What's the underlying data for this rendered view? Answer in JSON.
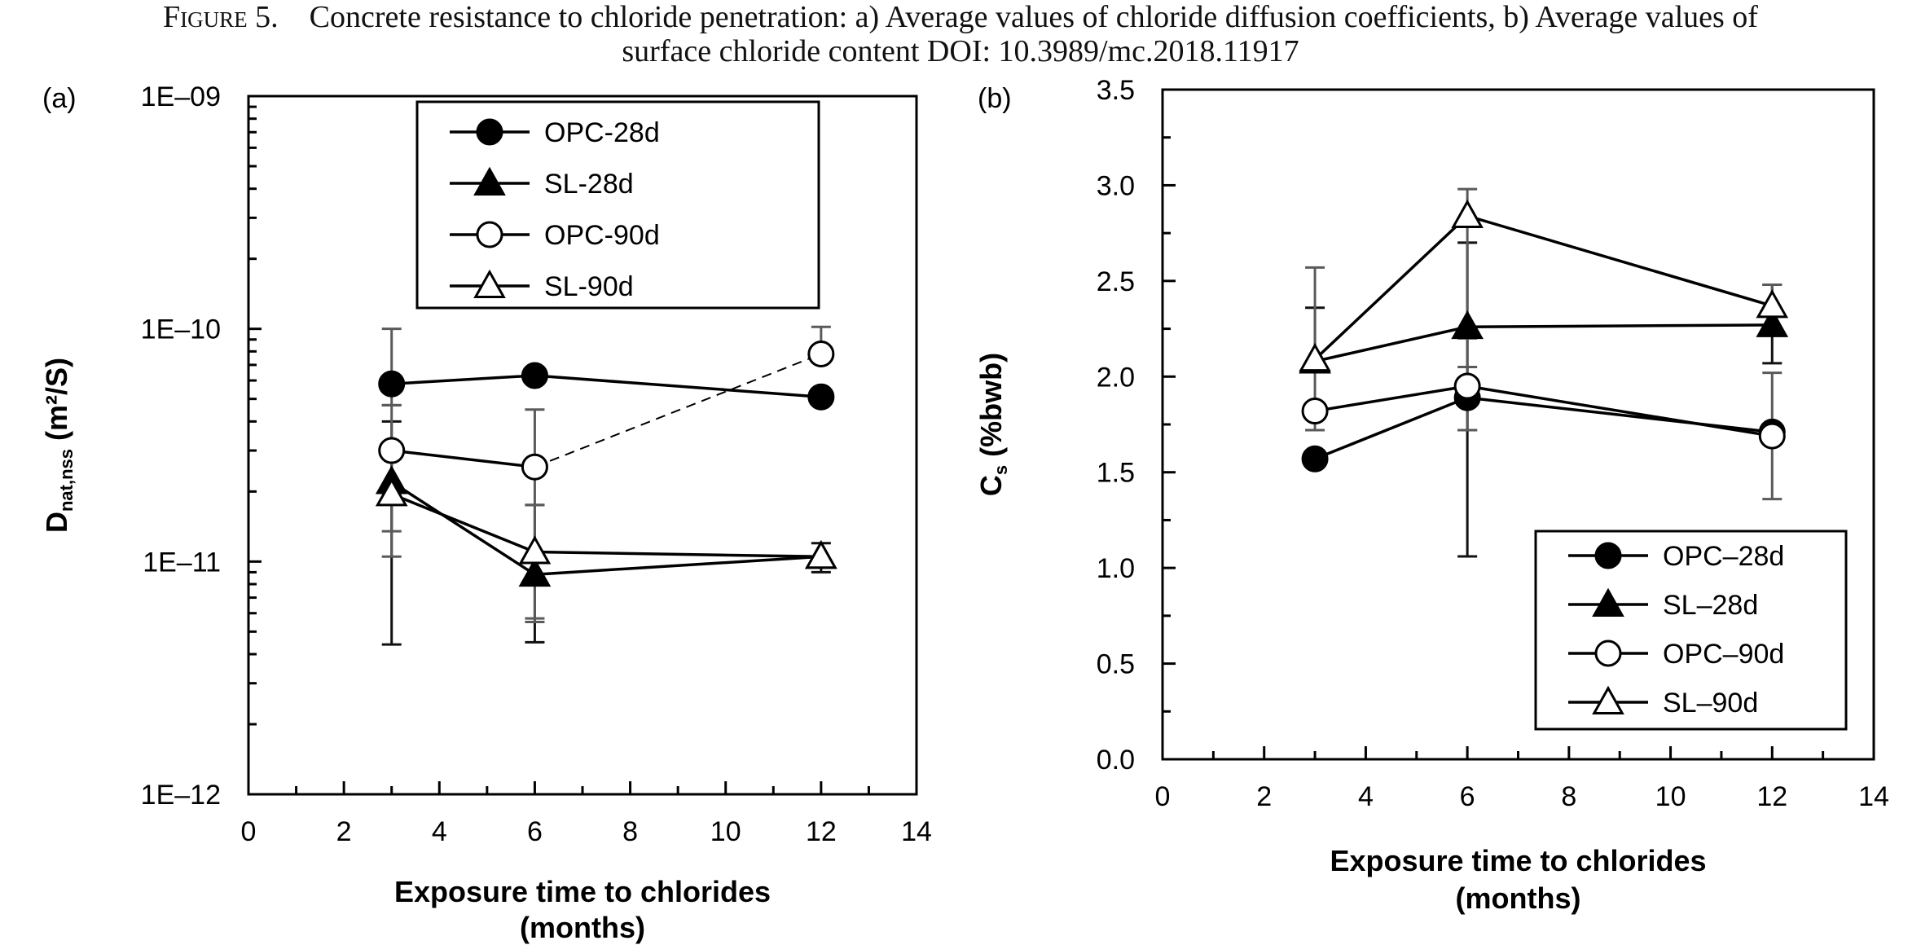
{
  "caption": {
    "figure_no": "Figure 5.",
    "line1": "Concrete resistance to chloride penetration: a) Average values of chloride diffusion coefficients, b) Average values of",
    "line2": "surface chloride content  DOI: 10.3989/mc.2018.11917"
  },
  "chart_data": [
    {
      "panel": "(a)",
      "type": "line",
      "yscale": "log",
      "xlabel": "Exposure time to  chlorides",
      "xlabel2": "(months)",
      "ylabel_main": "D",
      "ylabel_sub": "nat,nss",
      "ylabel_unit": "(m²/S)",
      "xlim": [
        0,
        14
      ],
      "ylim": [
        1e-12,
        1e-09
      ],
      "xticks": [
        0,
        2,
        4,
        6,
        8,
        10,
        12,
        14
      ],
      "xtick_labels": [
        "0",
        "2",
        "4",
        "6",
        "8",
        "10",
        "12",
        "14"
      ],
      "yticks": [
        1e-12,
        1e-11,
        1e-10,
        1e-09
      ],
      "ytick_labels": [
        "1E–12",
        "1E–11",
        "1E–10",
        "1E–09"
      ],
      "legend_position": "top-center",
      "series": [
        {
          "name": "OPC-28d",
          "marker": "circle",
          "filled": true,
          "x": [
            3,
            6,
            12
          ],
          "y": [
            5.8e-11,
            6.3e-11,
            5.1e-11
          ],
          "err_low": [
            4.7e-11,
            null,
            null
          ],
          "err_high": [
            1e-10,
            null,
            null
          ],
          "dashed_segments": []
        },
        {
          "name": "SL-28d",
          "marker": "triangle",
          "filled": true,
          "x": [
            3,
            6,
            12
          ],
          "y": [
            2.2e-11,
            8.8e-12,
            1.05e-11
          ],
          "err_low": [
            4.4e-12,
            4.5e-12,
            9e-12
          ],
          "err_high": [
            4e-11,
            1.75e-11,
            1.2e-11
          ],
          "dashed_segments": []
        },
        {
          "name": "OPC-90d",
          "marker": "circle",
          "filled": false,
          "x": [
            3,
            6,
            12
          ],
          "y": [
            3e-11,
            2.55e-11,
            7.8e-11
          ],
          "err_low": [
            1.35e-11,
            5.5e-12,
            null
          ],
          "err_high": [
            4.7e-11,
            4.5e-11,
            1.02e-10
          ],
          "dashed_segments": [
            1
          ]
        },
        {
          "name": "SL-90d",
          "marker": "triangle",
          "filled": false,
          "x": [
            3,
            6,
            12
          ],
          "y": [
            1.95e-11,
            1.1e-11,
            1.05e-11
          ],
          "err_low": [
            1.05e-11,
            5.7e-12,
            null
          ],
          "err_high": [
            2.9e-11,
            1.75e-11,
            null
          ],
          "dashed_segments": []
        }
      ]
    },
    {
      "panel": "(b)",
      "type": "line",
      "yscale": "linear",
      "xlabel": "Exposure time to chlorides",
      "xlabel2": "(months)",
      "ylabel_main": "C",
      "ylabel_sub": "s",
      "ylabel_unit": "(%bwb)",
      "xlim": [
        0,
        14
      ],
      "ylim": [
        0,
        3.5
      ],
      "xticks": [
        0,
        2,
        4,
        6,
        8,
        10,
        12,
        14
      ],
      "xtick_labels": [
        "0",
        "2",
        "4",
        "6",
        "8",
        "10",
        "12",
        "14"
      ],
      "yticks": [
        0,
        0.5,
        1.0,
        1.5,
        2.0,
        2.5,
        3.0,
        3.5
      ],
      "ytick_labels": [
        "0.0",
        "0.5",
        "1.0",
        "1.5",
        "2.0",
        "2.5",
        "3.0",
        "3.5"
      ],
      "legend_position": "bottom-right",
      "series": [
        {
          "name": "OPC–28d",
          "marker": "circle",
          "filled": true,
          "x": [
            3,
            6,
            12
          ],
          "y": [
            1.57,
            1.89,
            1.71
          ],
          "err_low": [
            null,
            1.72,
            null
          ],
          "err_high": [
            null,
            2.05,
            null
          ],
          "dashed_segments": []
        },
        {
          "name": "SL–28d",
          "marker": "triangle",
          "filled": true,
          "x": [
            3,
            6,
            12
          ],
          "y": [
            2.08,
            2.26,
            2.27
          ],
          "err_low": [
            null,
            1.06,
            2.07
          ],
          "err_high": [
            2.36,
            2.7,
            2.48
          ],
          "dashed_segments": []
        },
        {
          "name": "OPC–90d",
          "marker": "circle",
          "filled": false,
          "x": [
            3,
            6,
            12
          ],
          "y": [
            1.82,
            1.95,
            1.69
          ],
          "err_low": [
            null,
            1.72,
            1.36
          ],
          "err_high": [
            null,
            2.2,
            2.02
          ],
          "dashed_segments": []
        },
        {
          "name": "SL–90d",
          "marker": "triangle",
          "filled": false,
          "x": [
            3,
            6,
            12
          ],
          "y": [
            2.09,
            2.84,
            2.37
          ],
          "err_low": [
            1.72,
            1.72,
            null
          ],
          "err_high": [
            2.57,
            2.98,
            2.48
          ],
          "dashed_segments": []
        }
      ]
    }
  ]
}
